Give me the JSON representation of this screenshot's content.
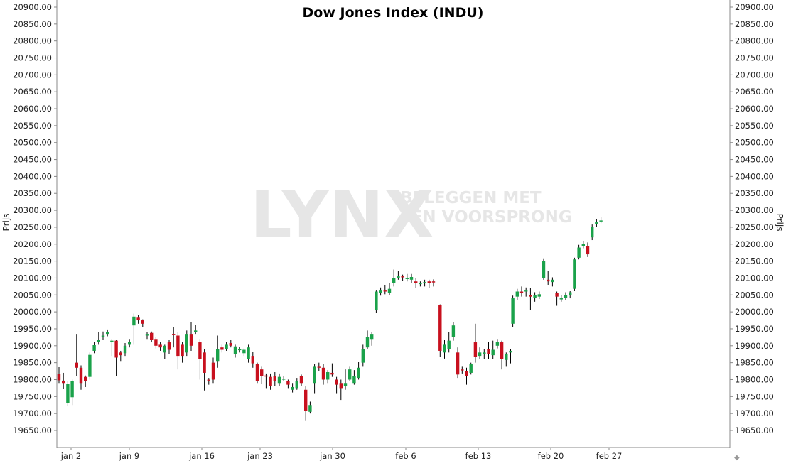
{
  "chart_data": {
    "type": "candlestick",
    "title": "Dow Jones Index (INDU)",
    "ylabel": "Prijs",
    "ylim": [
      19620,
      20920
    ],
    "y_ticks": [
      "19650.00",
      "19700.00",
      "19750.00",
      "19800.00",
      "19850.00",
      "19900.00",
      "19950.00",
      "20000.00",
      "20050.00",
      "20100.00",
      "20150.00",
      "20200.00",
      "20250.00",
      "20300.00",
      "20350.00",
      "20400.00",
      "20450.00",
      "20500.00",
      "20550.00",
      "20600.00",
      "20650.00",
      "20700.00",
      "20750.00",
      "20800.00",
      "20850.00",
      "20900.00"
    ],
    "x_ticks": [
      {
        "label": "jan 2",
        "pos": 2
      },
      {
        "label": "jan 9",
        "pos": 13
      },
      {
        "label": "jan 16",
        "pos": 24
      },
      {
        "label": "jan 23",
        "pos": 35
      },
      {
        "label": "jan 30",
        "pos": 46
      },
      {
        "label": "feb 6",
        "pos": 57
      },
      {
        "label": "feb 13",
        "pos": 68
      },
      {
        "label": "feb 20",
        "pos": 79
      },
      {
        "label": "feb 27",
        "pos": 90
      }
    ],
    "x_range": [
      0,
      126
    ],
    "colors": {
      "up": "#1aa24a",
      "down": "#c8101e",
      "wick": "#000000",
      "axis": "#888888"
    },
    "watermark": {
      "logo": "LYNX",
      "tagline": [
        "BELEGGEN MET",
        "EEN VOORSPRONG"
      ]
    },
    "candles": [
      [
        0,
        19817,
        19798,
        19838,
        19790
      ],
      [
        1,
        19797,
        19790,
        19820,
        19772
      ],
      [
        2,
        19730,
        19788,
        19795,
        19722
      ],
      [
        3,
        19748,
        19795,
        19800,
        19725
      ],
      [
        4,
        19850,
        19835,
        19935,
        19810
      ],
      [
        5,
        19835,
        19790,
        19842,
        19770
      ],
      [
        6,
        19808,
        19795,
        19812,
        19778
      ],
      [
        7,
        19808,
        19873,
        19880,
        19800
      ],
      [
        8,
        19885,
        19903,
        19912,
        19878
      ],
      [
        9,
        19912,
        19918,
        19940,
        19905
      ],
      [
        10,
        19925,
        19930,
        19942,
        19918
      ],
      [
        11,
        19935,
        19941,
        19948,
        19928
      ],
      [
        12,
        19915,
        19915,
        19920,
        19870
      ],
      [
        13,
        19915,
        19865,
        19918,
        19810
      ],
      [
        14,
        19880,
        19872,
        19885,
        19855
      ],
      [
        15,
        19878,
        19900,
        19908,
        19870
      ],
      [
        16,
        19905,
        19912,
        19920,
        19895
      ],
      [
        17,
        19960,
        19986,
        19995,
        19905
      ],
      [
        18,
        19985,
        19975,
        19990,
        19965
      ],
      [
        19,
        19975,
        19965,
        19978,
        19955
      ],
      [
        20,
        19930,
        19935,
        19940,
        19920
      ],
      [
        21,
        19938,
        19918,
        19942,
        19910
      ],
      [
        22,
        19920,
        19900,
        19925,
        19892
      ],
      [
        23,
        19905,
        19895,
        19910,
        19885
      ],
      [
        24,
        19880,
        19900,
        19905,
        19860
      ],
      [
        25,
        19910,
        19888,
        19918,
        19875
      ],
      [
        26,
        19935,
        19932,
        19955,
        19895
      ],
      [
        27,
        19930,
        19870,
        19940,
        19830
      ],
      [
        28,
        19905,
        19870,
        19912,
        19850
      ],
      [
        29,
        19880,
        19935,
        19945,
        19870
      ],
      [
        30,
        19935,
        19900,
        19970,
        19885
      ],
      [
        31,
        19940,
        19945,
        19962,
        19935
      ],
      [
        32,
        19910,
        19860,
        19920,
        19800
      ],
      [
        33,
        19880,
        19820,
        19890,
        19768
      ],
      [
        34,
        19800,
        19798,
        19805,
        19785
      ],
      [
        35,
        19850,
        19800,
        19865,
        19790
      ],
      [
        36,
        19855,
        19890,
        19930,
        19835
      ],
      [
        37,
        19895,
        19888,
        19905,
        19880
      ],
      [
        38,
        19890,
        19905,
        19912,
        19885
      ],
      [
        39,
        19908,
        19900,
        19918,
        19895
      ],
      [
        40,
        19875,
        19898,
        19905,
        19865
      ],
      [
        41,
        19890,
        19890,
        19896,
        19880
      ],
      [
        42,
        19878,
        19888,
        19892,
        19870
      ],
      [
        43,
        19860,
        19895,
        19905,
        19850
      ],
      [
        44,
        19870,
        19848,
        19882,
        19835
      ],
      [
        45,
        19845,
        19795,
        19850,
        19790
      ],
      [
        46,
        19830,
        19810,
        19840,
        19788
      ],
      [
        47,
        19812,
        19810,
        19818,
        19775
      ],
      [
        48,
        19808,
        19780,
        19818,
        19770
      ],
      [
        49,
        19810,
        19795,
        19822,
        19780
      ],
      [
        50,
        19790,
        19808,
        19818,
        19782
      ],
      [
        51,
        19800,
        19803,
        19810,
        19795
      ],
      [
        52,
        19795,
        19785,
        19800,
        19775
      ],
      [
        53,
        19770,
        19778,
        19790,
        19762
      ],
      [
        54,
        19775,
        19795,
        19805,
        19770
      ],
      [
        55,
        19810,
        19790,
        19815,
        19780
      ],
      [
        56,
        19770,
        19708,
        19780,
        19680
      ],
      [
        57,
        19705,
        19725,
        19735,
        19700
      ],
      [
        58,
        19790,
        19840,
        19845,
        19760
      ],
      [
        59,
        19840,
        19835,
        19850,
        19825
      ],
      [
        60,
        19835,
        19800,
        19845,
        19785
      ],
      [
        61,
        19800,
        19822,
        19828,
        19790
      ],
      [
        62,
        19820,
        19815,
        19848,
        19808
      ],
      [
        63,
        19800,
        19785,
        19808,
        19760
      ],
      [
        64,
        19790,
        19775,
        19800,
        19740
      ],
      [
        65,
        19780,
        19790,
        19830,
        19770
      ],
      [
        66,
        19800,
        19830,
        19840,
        19795
      ],
      [
        67,
        19790,
        19810,
        19828,
        19785
      ],
      [
        68,
        19805,
        19835,
        19852,
        19800
      ],
      [
        69,
        19850,
        19890,
        19905,
        19840
      ],
      [
        70,
        19895,
        19925,
        19945,
        19890
      ],
      [
        71,
        19920,
        19935,
        19940,
        19900
      ],
      [
        72,
        20005,
        20060,
        20065,
        19998
      ],
      [
        73,
        20055,
        20065,
        20072,
        20048
      ],
      [
        74,
        20065,
        20060,
        20080,
        20052
      ],
      [
        75,
        20055,
        20068,
        20085,
        20050
      ],
      [
        76,
        20085,
        20100,
        20125,
        20075
      ],
      [
        77,
        20100,
        20105,
        20120,
        20095
      ],
      [
        78,
        20105,
        20102,
        20110,
        20092
      ],
      [
        79,
        20098,
        20100,
        20112,
        20090
      ],
      [
        80,
        20095,
        20103,
        20112,
        20085
      ],
      [
        81,
        20090,
        20085,
        20100,
        20070
      ],
      [
        82,
        20082,
        20085,
        20090,
        20075
      ],
      [
        83,
        20086,
        20088,
        20095,
        20075
      ],
      [
        84,
        20090,
        20086,
        20095,
        20070
      ],
      [
        85,
        20090,
        20088,
        20096,
        20075
      ]
    ],
    "candles2": [
      [
        86.5,
        20020,
        19885,
        20022,
        19868
      ],
      [
        87.5,
        19880,
        19905,
        19918,
        19862
      ],
      [
        88.5,
        19890,
        19915,
        19940,
        19880
      ],
      [
        89.5,
        19925,
        19960,
        19970,
        19915
      ],
      [
        90.5,
        19880,
        19815,
        19895,
        19805
      ],
      [
        91.5,
        19830,
        19828,
        19840,
        19818
      ],
      [
        92.5,
        19825,
        19810,
        19835,
        19785
      ],
      [
        93.5,
        19820,
        19845,
        19850,
        19815
      ],
      [
        94.5,
        19910,
        19868,
        19965,
        19850
      ],
      [
        95.5,
        19870,
        19880,
        19895,
        19860
      ],
      [
        96.5,
        19875,
        19880,
        19890,
        19860
      ],
      [
        97.5,
        19890,
        19875,
        19910,
        19860
      ],
      [
        98.5,
        19872,
        19888,
        19915,
        19860
      ],
      [
        99.5,
        19900,
        19912,
        19920,
        19892
      ],
      [
        100.5,
        19910,
        19860,
        19915,
        19830
      ],
      [
        101.5,
        19858,
        19875,
        19880,
        19840
      ],
      [
        102.5,
        19880,
        19885,
        19890,
        19848
      ]
    ],
    "candles3": [
      [
        103,
        19965,
        20040,
        20048,
        19955
      ],
      [
        104,
        20045,
        20060,
        20068,
        20035
      ],
      [
        105,
        20060,
        20055,
        20075,
        20045
      ],
      [
        106,
        20060,
        20065,
        20072,
        20045
      ],
      [
        107,
        20050,
        20045,
        20070,
        20005
      ],
      [
        108,
        20042,
        20050,
        20058,
        20030
      ],
      [
        109,
        20045,
        20052,
        20060,
        20038
      ],
      [
        110,
        20100,
        20150,
        20158,
        20095
      ],
      [
        111,
        20095,
        20090,
        20120,
        20080
      ],
      [
        112,
        20088,
        20095,
        20102,
        20075
      ],
      [
        113,
        20055,
        20045,
        20060,
        20018
      ],
      [
        114,
        20040,
        20040,
        20050,
        20030
      ],
      [
        115,
        20042,
        20050,
        20058,
        20035
      ],
      [
        116,
        20050,
        20058,
        20062,
        20040
      ],
      [
        117,
        20068,
        20155,
        20160,
        20062
      ],
      [
        118,
        20160,
        20190,
        20198,
        20155
      ],
      [
        119,
        20195,
        20200,
        20210,
        20188
      ],
      [
        120,
        20195,
        20170,
        20205,
        20162
      ],
      [
        121,
        20220,
        20252,
        20258,
        20212
      ],
      [
        122,
        20260,
        20265,
        20275,
        20250
      ],
      [
        123,
        20268,
        20270,
        20280,
        20262
      ]
    ]
  }
}
